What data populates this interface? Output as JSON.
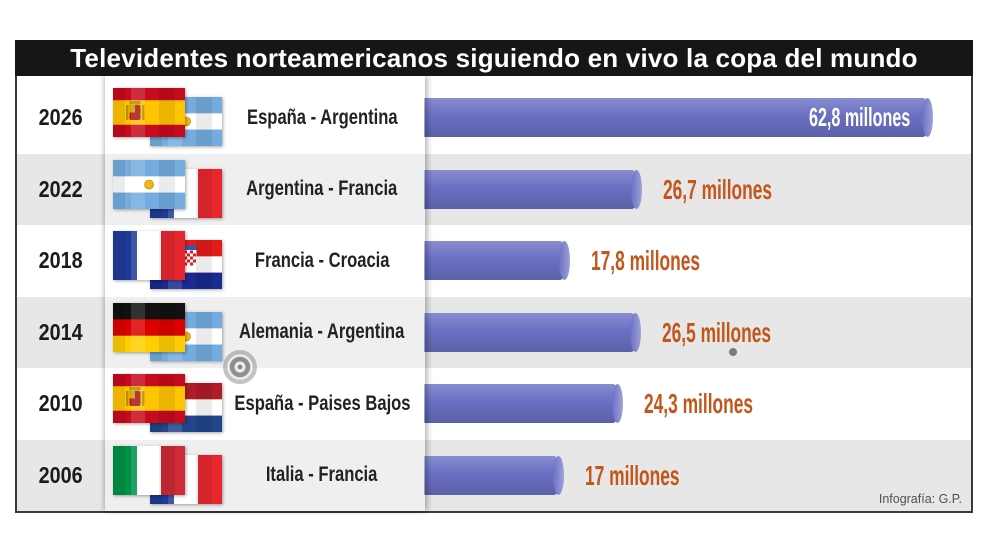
{
  "chart_data": {
    "type": "bar",
    "orientation": "horizontal",
    "title": "Televidentes norteamericanos siguiendo en vivo la copa del mundo",
    "categories": [
      "2026",
      "2022",
      "2018",
      "2014",
      "2010",
      "2006"
    ],
    "matches": [
      "España - Argentina",
      "Argentina - Francia",
      "Francia - Croacia",
      "Alemania - Argentina",
      "España - Paises Bajos",
      "Italia - Francia"
    ],
    "flags": [
      [
        "spain-flag",
        "argentina-flag"
      ],
      [
        "argentina-flag",
        "france-flag"
      ],
      [
        "france-flag",
        "croatia-flag"
      ],
      [
        "germany-flag",
        "argentina-flag"
      ],
      [
        "spain-flag",
        "netherlands-flag"
      ],
      [
        "italy-flag",
        "france-flag"
      ]
    ],
    "values": [
      62.8,
      26.7,
      17.8,
      26.5,
      24.3,
      17
    ],
    "value_labels": [
      "62,8 millones",
      "26,7 millones",
      "17,8 millones",
      "26,5 millones",
      "24,3 millones",
      "17 millones"
    ],
    "grid": false,
    "credit": "Infografía: G.P.",
    "colors": {
      "bar": "#6b70c3",
      "value_label": "#c2561b",
      "value_label_inside": "#ffffff",
      "title_background": "#161616",
      "title_text": "#ffffff",
      "row_alternate": "#e7e7e7"
    }
  },
  "overlay": {
    "icon": "target-icon"
  }
}
